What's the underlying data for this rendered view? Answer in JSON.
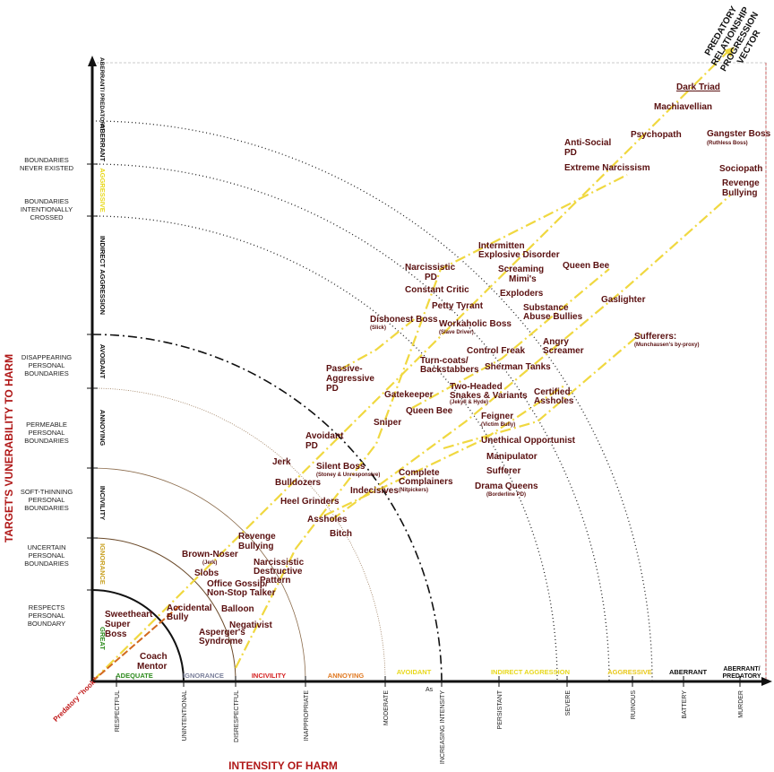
{
  "title_vector": [
    "PREDATORY",
    "RELATIONSHIP",
    "PROGRESSION",
    "VECTOR"
  ],
  "axis": {
    "y_title": "TARGET'S VUNERABILITY TO HARM",
    "x_title": "INTENSITY OF HARM",
    "origin_hook": "Predatory \"hook\"",
    "as_label": "As"
  },
  "colors": {
    "label": "#5a1010",
    "great": "#2e8b1e",
    "adequate": "#2e8b1e",
    "ignorance": "#7a7f9a",
    "incivility": "#d42020",
    "annoying": "#e07820",
    "avoidant": "#e8d81a",
    "indirect": "#e8d81a",
    "vector": "#f0d840",
    "hook": "#d2691e"
  },
  "y_boundary_labels": [
    [
      "BOUNDARIES",
      "NEVER EXISTED"
    ],
    [
      "BOUNDARIES",
      "INTENTIONALLY",
      "CROSSED"
    ],
    [
      "DISAPPEARING",
      "PERSONAL",
      "BOUNDARIES"
    ],
    [
      "PERMEABLE",
      "PERSONAL",
      "BOUNDARIES"
    ],
    [
      "SOFT-THINNING",
      "PERSONAL",
      "BOUNDARIES"
    ],
    [
      "UNCERTAIN",
      "PERSONAL",
      "BOUNDARIES"
    ],
    [
      "RESPECTS",
      "PERSONAL",
      "BOUNDARY"
    ]
  ],
  "y_zones": [
    "ABERRANT/ PREDATORY",
    "ABERRANT",
    "AGGRESSIVE",
    "INDIRECT AGGRESSION",
    "AVOIDANT",
    "ANNOYING",
    "INCIVILITY",
    "IGNORANCE",
    "GREAT"
  ],
  "x_zones": [
    "ADEQUATE",
    "IGNORANCE",
    "INCIVILITY",
    "ANNOYING",
    "AVOIDANT",
    "INDIRECT AGGRESSION",
    "AGGRESSIVE",
    "ABERRANT",
    "ABERRANT/ PREDATORY"
  ],
  "x_ticks": [
    "RESPECTFUL",
    "UNINTENTIONAL",
    "DISRESPECTFUL",
    "INAPPROPRIATE",
    "MODERATE",
    "INCREASING INTENSITY",
    "PERSISTANT",
    "SEVERE",
    "RUINOUS",
    "BATTERY",
    "MURDER"
  ],
  "items": [
    {
      "t": "Dark Triad"
    },
    {
      "t": "Machiavellian"
    },
    {
      "t": "Psychopath"
    },
    {
      "t": "Gangster Boss",
      "s": "(Ruthless Boss)"
    },
    {
      "t": "Anti-Social PD"
    },
    {
      "t": "Extreme Narcissism"
    },
    {
      "t": "Sociopath"
    },
    {
      "t": "Revenge Bullying"
    },
    {
      "t": "Intermitten Explosive Disorder"
    },
    {
      "t": "Narcissistic PD"
    },
    {
      "t": "Screaming Mimi's"
    },
    {
      "t": "Queen Bee"
    },
    {
      "t": "Constant Critic"
    },
    {
      "t": "Exploders"
    },
    {
      "t": "Petty Tyrant"
    },
    {
      "t": "Substance Abuse Bullies"
    },
    {
      "t": "Gaslighter"
    },
    {
      "t": "Dishonest Boss",
      "s": "(Slick)"
    },
    {
      "t": "Workaholic Boss",
      "s": "(Slave Driver)"
    },
    {
      "t": "Sufferers:",
      "s": "(Munchausen's by-proxy)"
    },
    {
      "t": "Angry Screamer"
    },
    {
      "t": "Control Freak"
    },
    {
      "t": "Turn-coats/ Backstabbers"
    },
    {
      "t": "Sherman Tanks"
    },
    {
      "t": "Passive- Aggressive PD"
    },
    {
      "t": "Gatekeeper"
    },
    {
      "t": "Two-Headed Snakes & Variants",
      "s": "(Jekyll & Hyde)"
    },
    {
      "t": "Certified Assholes"
    },
    {
      "t": "Queen Bee"
    },
    {
      "t": "Feigner",
      "s": "(Victim Bully)"
    },
    {
      "t": "Sniper"
    },
    {
      "t": "Avoidant PD"
    },
    {
      "t": "Unethical Opportunist"
    },
    {
      "t": "Jerk"
    },
    {
      "t": "Silent Boss",
      "s": "(Stoney & Unresponsive)"
    },
    {
      "t": "Manipulator"
    },
    {
      "t": "Sufferer"
    },
    {
      "t": "Complete Complainers",
      "s": "(Nitpickers)"
    },
    {
      "t": "Bulldozers"
    },
    {
      "t": "Indecisives"
    },
    {
      "t": "Drama Queens",
      "s": "(Borderline PD)"
    },
    {
      "t": "Heel Grinders"
    },
    {
      "t": "Assholes"
    },
    {
      "t": "Bitch"
    },
    {
      "t": "Revenge Bullying"
    },
    {
      "t": "Brown-Noser",
      "s": "(Jerk)"
    },
    {
      "t": "Narcissistic Destructive Pattern"
    },
    {
      "t": "Slobs"
    },
    {
      "t": "Office Gossip/ Non-Stop Talker"
    },
    {
      "t": "Accidental Bully"
    },
    {
      "t": "Balloon"
    },
    {
      "t": "Sweetheart Super Boss"
    },
    {
      "t": "Asperger's Syndrome"
    },
    {
      "t": "Negativist"
    },
    {
      "t": "Coach Mentor"
    }
  ]
}
